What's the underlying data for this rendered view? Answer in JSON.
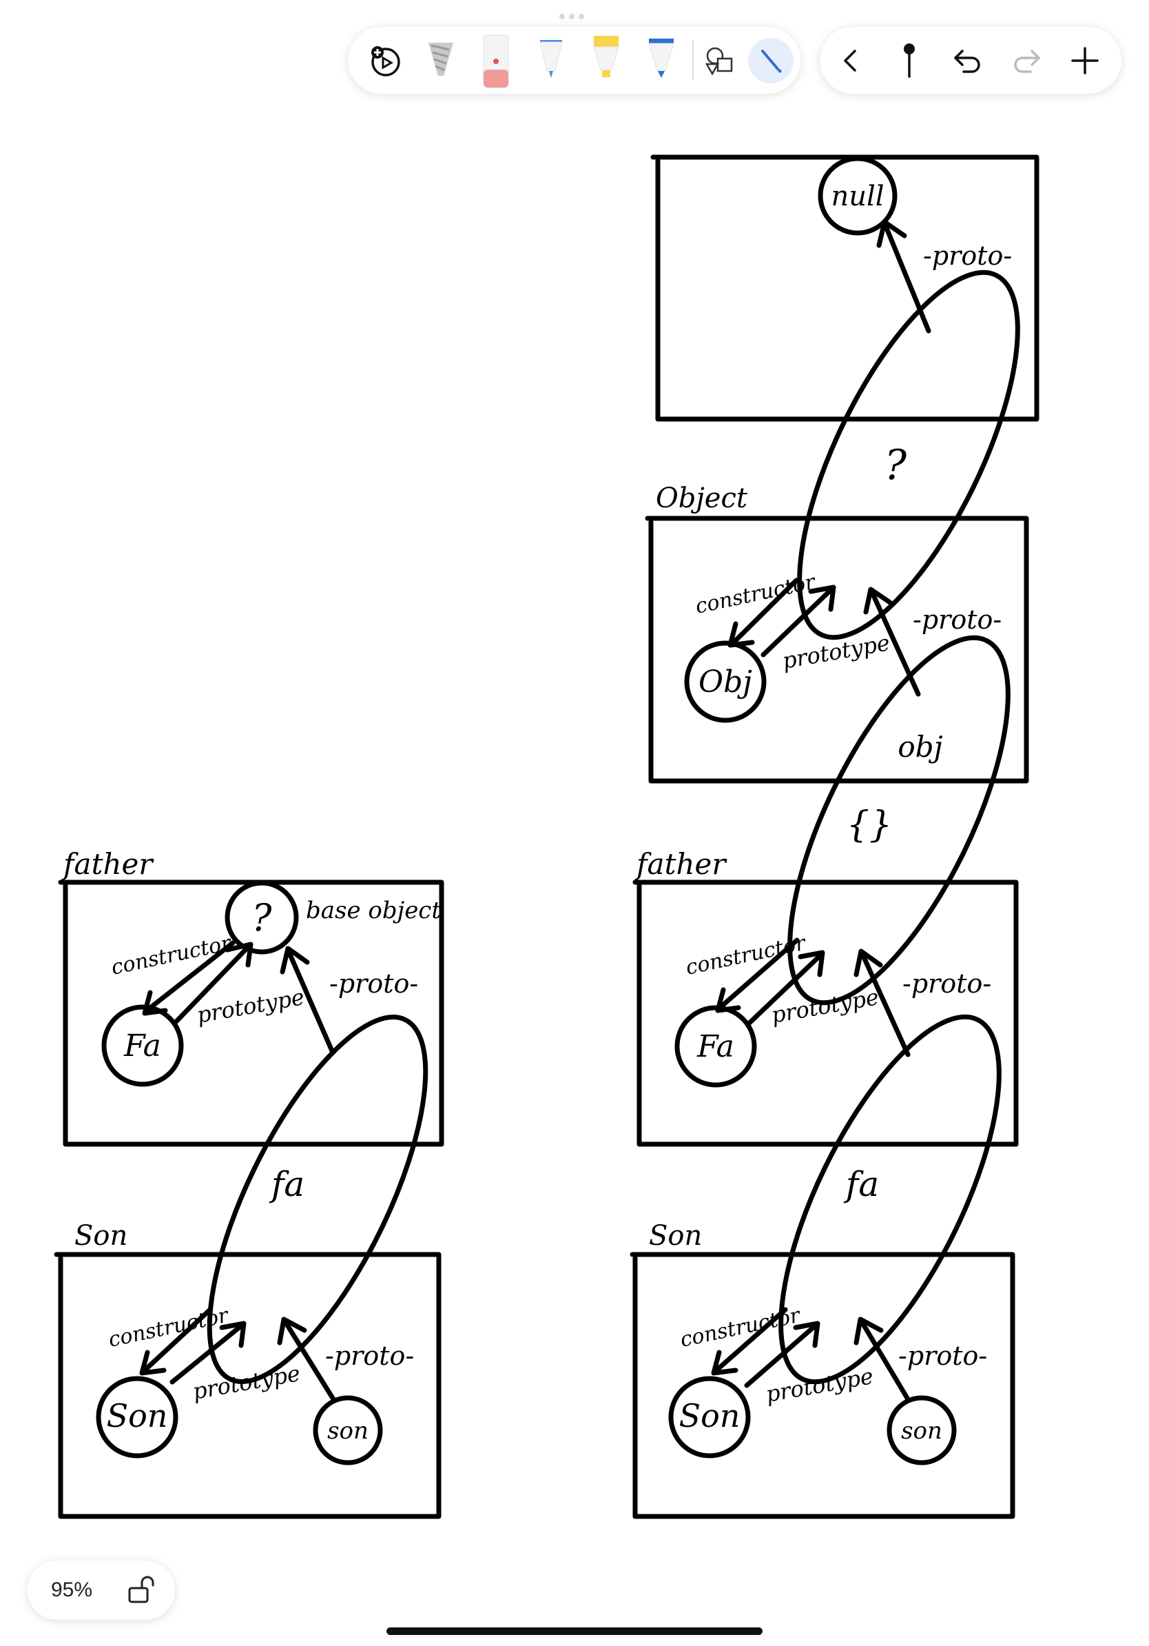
{
  "toolbar": {
    "tools": [
      "add-media-icon",
      "pencil-tool-icon",
      "eraser-tool-icon",
      "pen-tool-icon",
      "highlighter-tool-icon",
      "marker-tool-icon",
      "shapes-tool-icon",
      "lasso-tool-icon"
    ],
    "nav": [
      "back-icon",
      "pin-icon",
      "undo-icon",
      "redo-icon",
      "add-page-icon"
    ]
  },
  "zoom": {
    "level": "95%"
  },
  "diagram": {
    "left": {
      "father_title": "father",
      "father_node": "?",
      "father_node_note": "base object",
      "father_ctor": "Fa",
      "son_title": "Son",
      "son_ctor": "Son",
      "son_instance": "son",
      "fa_ellipse": "fa"
    },
    "right": {
      "top_node": "null",
      "object_title": "Object",
      "object_ctor": "Obj",
      "object_ellipse": "?",
      "obj_ellipse_top": "obj",
      "obj_ellipse_bottom": "{}",
      "father_title": "father",
      "father_ctor": "Fa",
      "son_title": "Son",
      "son_ctor": "Son",
      "son_instance": "son",
      "fa_ellipse": "fa"
    },
    "labels": {
      "constructor": "constructor",
      "prototype": "prototype",
      "proto": "-proto-"
    }
  }
}
